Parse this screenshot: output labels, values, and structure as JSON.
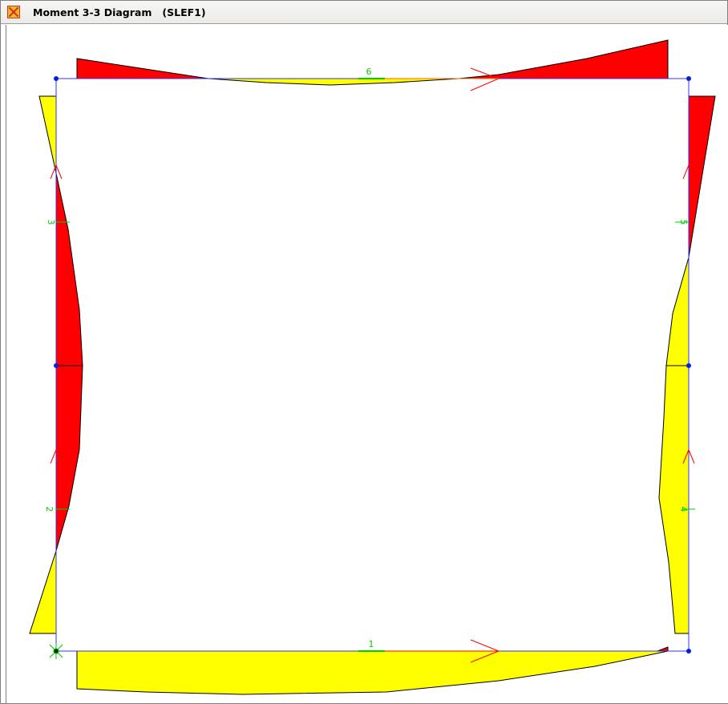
{
  "window": {
    "title": "Moment 3-3 Diagram   (SLEF1)",
    "icon": "app-logo-icon"
  },
  "diagram": {
    "frame_labels": [
      "6",
      "3",
      "5",
      "2",
      "4",
      "1"
    ],
    "colors": {
      "positive": "#ffff00",
      "negative": "#ff0000",
      "frame_line": "#3030ff",
      "joint": "#0020e0",
      "local_axis": "#ff0000",
      "label": "#00d000",
      "outline": "#000000"
    }
  }
}
